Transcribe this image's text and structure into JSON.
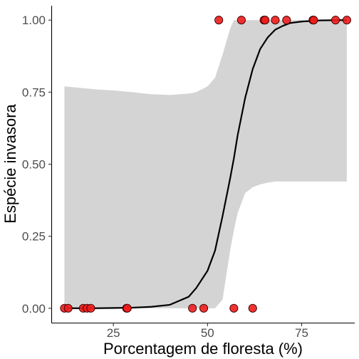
{
  "chart_data": {
    "type": "scatter",
    "xlabel": "Porcentagem de floresta (%)",
    "ylabel": "Espécie invasora",
    "xlim": [
      8.7,
      89.1
    ],
    "ylim": [
      -0.05,
      1.05
    ],
    "x_ticks": [
      25,
      50,
      75
    ],
    "y_ticks": [
      0.0,
      0.25,
      0.5,
      0.75,
      1.0
    ],
    "x_tick_labels": [
      "25",
      "50",
      "75"
    ],
    "y_tick_labels": [
      "0.00",
      "0.25",
      "0.50",
      "0.75",
      "1.00"
    ],
    "grid": false,
    "point_color": "#ee1c1c",
    "curve_color": "#000000",
    "band_color": "#d4d4d4",
    "points": [
      {
        "x": 12,
        "y": 0
      },
      {
        "x": 13,
        "y": 0
      },
      {
        "x": 17,
        "y": 0
      },
      {
        "x": 18,
        "y": 0
      },
      {
        "x": 19,
        "y": 0
      },
      {
        "x": 28.5,
        "y": 0
      },
      {
        "x": 28.7,
        "y": 0
      },
      {
        "x": 46,
        "y": 0
      },
      {
        "x": 49,
        "y": 0
      },
      {
        "x": 57,
        "y": 0
      },
      {
        "x": 62,
        "y": 0
      },
      {
        "x": 53,
        "y": 1
      },
      {
        "x": 59,
        "y": 1
      },
      {
        "x": 65,
        "y": 1
      },
      {
        "x": 65.3,
        "y": 1
      },
      {
        "x": 68,
        "y": 1
      },
      {
        "x": 71,
        "y": 1
      },
      {
        "x": 78,
        "y": 1
      },
      {
        "x": 78.2,
        "y": 1
      },
      {
        "x": 84,
        "y": 1
      },
      {
        "x": 87,
        "y": 1
      }
    ],
    "fit_curve": {
      "x": [
        12,
        20,
        25,
        30,
        35,
        40,
        45,
        47,
        50,
        52,
        54,
        56,
        57,
        58,
        60,
        62,
        64,
        66,
        68,
        70,
        72,
        75,
        80,
        85,
        87
      ],
      "y": [
        0,
        0,
        0.001,
        0.002,
        0.005,
        0.012,
        0.04,
        0.07,
        0.13,
        0.2,
        0.32,
        0.45,
        0.52,
        0.6,
        0.73,
        0.83,
        0.9,
        0.94,
        0.967,
        0.98,
        0.99,
        0.995,
        0.999,
        1.0,
        1.0
      ],
      "lower": [
        0,
        0,
        0,
        0,
        0,
        0,
        0,
        0,
        0,
        0,
        0.03,
        0.2,
        0.27,
        0.33,
        0.4,
        0.42,
        0.43,
        0.436,
        0.44,
        0.44,
        0.44,
        0.44,
        0.44,
        0.44,
        0.44
      ],
      "upper": [
        0.77,
        0.76,
        0.756,
        0.75,
        0.743,
        0.74,
        0.745,
        0.75,
        0.77,
        0.8,
        0.88,
        0.97,
        1.0,
        1.0,
        1.0,
        1.0,
        1.0,
        1.0,
        1.0,
        1.0,
        1.0,
        1.0,
        1.0,
        1.0,
        1.0
      ]
    }
  }
}
